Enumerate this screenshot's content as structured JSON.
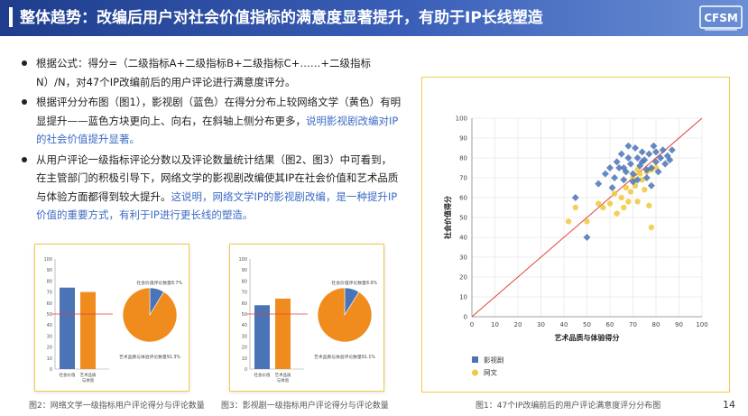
{
  "header": {
    "title": "整体趋势：改编后用户对社会价值指标的满意度显著提升，有助于IP长线塑造",
    "logo": "CFSM"
  },
  "bullets": [
    {
      "text": "根据公式：得分=（二级指标A+二级指标B+二级指标C+……+二级指标N）/N，对47个IP改编前后的用户评论进行满意度评分。"
    },
    {
      "plain": "根据评分分布图（图1），影视剧（蓝色）在得分分布上较网络文学（黄色）有明显提升——蓝色方块更向上、向右，在斜轴上侧分布更多，",
      "highlight": "说明影视剧改编对IP的社会价值提升显著。"
    },
    {
      "plain": "从用户评论一级指标评论分数以及评论数量统计结果（图2、图3）中可看到，在主管部门的积极引导下，网络文学的影视剧改编使其IP在社会价值和艺术品质与体验方面都得到较大提升。",
      "highlight": "这说明，网络文学IP的影视剧改编，是一种提升IP价值的重要方式，有利于IP进行更长线的塑造。"
    }
  ],
  "captions": {
    "fig1": "图1：47个IP改编前后的用户评论满意度评分分布图",
    "fig2": "图2：网络文学一级指标用户评论得分与评论数量",
    "fig3": "图3：影视剧一级指标用户评论得分与评论数量"
  },
  "page_number": "14",
  "colors": {
    "blue": "#4a74b5",
    "yellow": "#f0c93c",
    "orange": "#f08c1e",
    "red_line": "#e0403a",
    "card_border": "#f2c94c"
  },
  "chart_data": [
    {
      "id": "fig1",
      "type": "scatter",
      "xlabel": "艺术品质与体验得分",
      "ylabel": "社会价值得分",
      "xlim": [
        0,
        100
      ],
      "ylim": [
        0,
        100
      ],
      "xticks": [
        "0",
        "10",
        "20",
        "30",
        "40",
        "50",
        "60",
        "70",
        "80",
        "90",
        "100"
      ],
      "yticks": [
        "0",
        "10",
        "20",
        "30",
        "40",
        "50",
        "60",
        "70",
        "80",
        "90",
        "100"
      ],
      "grid": true,
      "diagonal": "y = x",
      "legend_position": "bottom-left",
      "series": [
        {
          "name": "影视剧",
          "marker": "diamond",
          "points": [
            [
              50,
              40
            ],
            [
              45,
              60
            ],
            [
              55,
              67
            ],
            [
              58,
              72
            ],
            [
              60,
              75
            ],
            [
              62,
              70
            ],
            [
              63,
              78
            ],
            [
              65,
              82
            ],
            [
              66,
              75
            ],
            [
              67,
              73
            ],
            [
              68,
              80
            ],
            [
              69,
              77
            ],
            [
              70,
              72
            ],
            [
              71,
              85
            ],
            [
              72,
              80
            ],
            [
              73,
              76
            ],
            [
              74,
              83
            ],
            [
              75,
              79
            ],
            [
              76,
              74
            ],
            [
              77,
              82
            ],
            [
              78,
              75
            ],
            [
              79,
              86
            ],
            [
              80,
              78
            ],
            [
              81,
              73
            ],
            [
              82,
              80
            ],
            [
              83,
              84
            ],
            [
              84,
              77
            ],
            [
              85,
              81
            ],
            [
              86,
              79
            ],
            [
              87,
              84
            ],
            [
              72,
              69
            ],
            [
              76,
              70
            ],
            [
              70,
              68
            ],
            [
              64,
              75
            ],
            [
              61,
              65
            ],
            [
              66,
              69
            ],
            [
              68,
              86
            ],
            [
              74,
              78
            ],
            [
              80,
              83
            ],
            [
              78,
              66
            ]
          ]
        },
        {
          "name": "网文",
          "marker": "circle",
          "points": [
            [
              42,
              48
            ],
            [
              45,
              55
            ],
            [
              50,
              48
            ],
            [
              55,
              57
            ],
            [
              57,
              55
            ],
            [
              60,
              57
            ],
            [
              62,
              62
            ],
            [
              65,
              60
            ],
            [
              67,
              65
            ],
            [
              68,
              58
            ],
            [
              70,
              70
            ],
            [
              71,
              66
            ],
            [
              72,
              58
            ],
            [
              73,
              72
            ],
            [
              74,
              69
            ],
            [
              75,
              64
            ],
            [
              76,
              73
            ],
            [
              77,
              56
            ],
            [
              78,
              74
            ],
            [
              80,
              75
            ],
            [
              78,
              45
            ],
            [
              63,
              52
            ],
            [
              66,
              55
            ],
            [
              69,
              63
            ],
            [
              72,
              74
            ]
          ]
        }
      ]
    },
    {
      "id": "fig2",
      "type": "bar+pie",
      "bars": {
        "categories": [
          "社会价值",
          "艺术品质与体验"
        ],
        "values": [
          74,
          70
        ],
        "ylim": [
          0,
          100
        ],
        "yticks": [
          "0",
          "10",
          "20",
          "30",
          "40",
          "50",
          "60",
          "70",
          "80",
          "90",
          "100"
        ],
        "reference_line": 50
      },
      "pie": {
        "slices": [
          {
            "label": "社会价值评论数量8.7%",
            "value": 8.7
          },
          {
            "label": "艺术品质与体验评论数量91.3%",
            "value": 91.3
          }
        ]
      }
    },
    {
      "id": "fig3",
      "type": "bar+pie",
      "bars": {
        "categories": [
          "社会价值",
          "艺术品质与体验"
        ],
        "values": [
          58,
          64
        ],
        "ylim": [
          0,
          100
        ],
        "yticks": [
          "0",
          "10",
          "20",
          "30",
          "40",
          "50",
          "60",
          "70",
          "80",
          "90",
          "100"
        ],
        "reference_line": 50
      },
      "pie": {
        "slices": [
          {
            "label": "社会价值评论数量8.9%",
            "value": 8.9
          },
          {
            "label": "艺术品质与体验评论数量91.1%",
            "value": 91.1
          }
        ]
      }
    }
  ]
}
